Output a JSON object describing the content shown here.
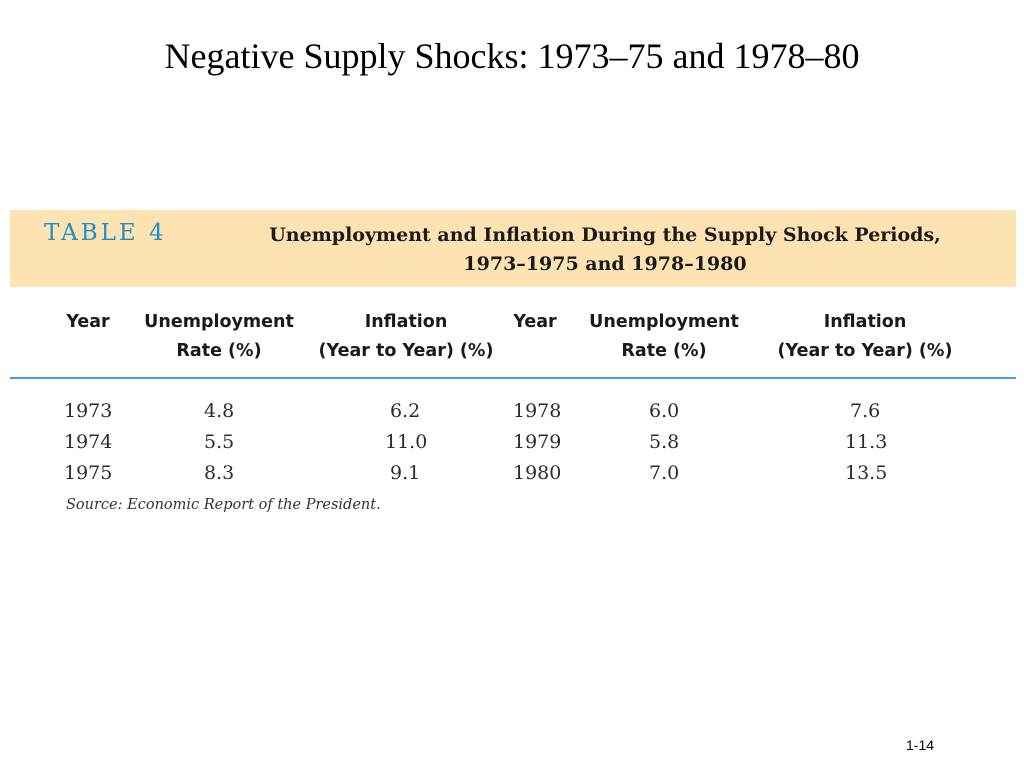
{
  "slide": {
    "title": "Negative Supply Shocks: 1973–75 and 1978–80",
    "page_number": "1-14"
  },
  "table": {
    "label": "TABLE 4",
    "caption_line1": "Unemployment and Inflation During the Supply Shock Periods,",
    "caption_line2": "1973–1975 and 1978–1980",
    "headers": [
      {
        "line1": "Year",
        "line2": ""
      },
      {
        "line1": "Unemployment",
        "line2": "Rate (%)"
      },
      {
        "line1": "Inflation",
        "line2": "(Year to Year) (%)"
      },
      {
        "line1": "Year",
        "line2": ""
      },
      {
        "line1": "Unemployment",
        "line2": "Rate (%)"
      },
      {
        "line1": "Inflation",
        "line2": "(Year to Year) (%)"
      }
    ],
    "rows": [
      [
        "1973",
        "4.8",
        "6.2",
        "1978",
        "6.0",
        "7.6"
      ],
      [
        "1974",
        "5.5",
        "11.0",
        "1979",
        "5.8",
        "11.3"
      ],
      [
        "1975",
        "8.3",
        "9.1",
        "1980",
        "7.0",
        "13.5"
      ]
    ],
    "source": "Source:  Economic Report of the President."
  },
  "colors": {
    "banner_background": "#fde3b2",
    "label_blue": "#1f8fc9",
    "rule_blue": "#3aa6d8"
  }
}
